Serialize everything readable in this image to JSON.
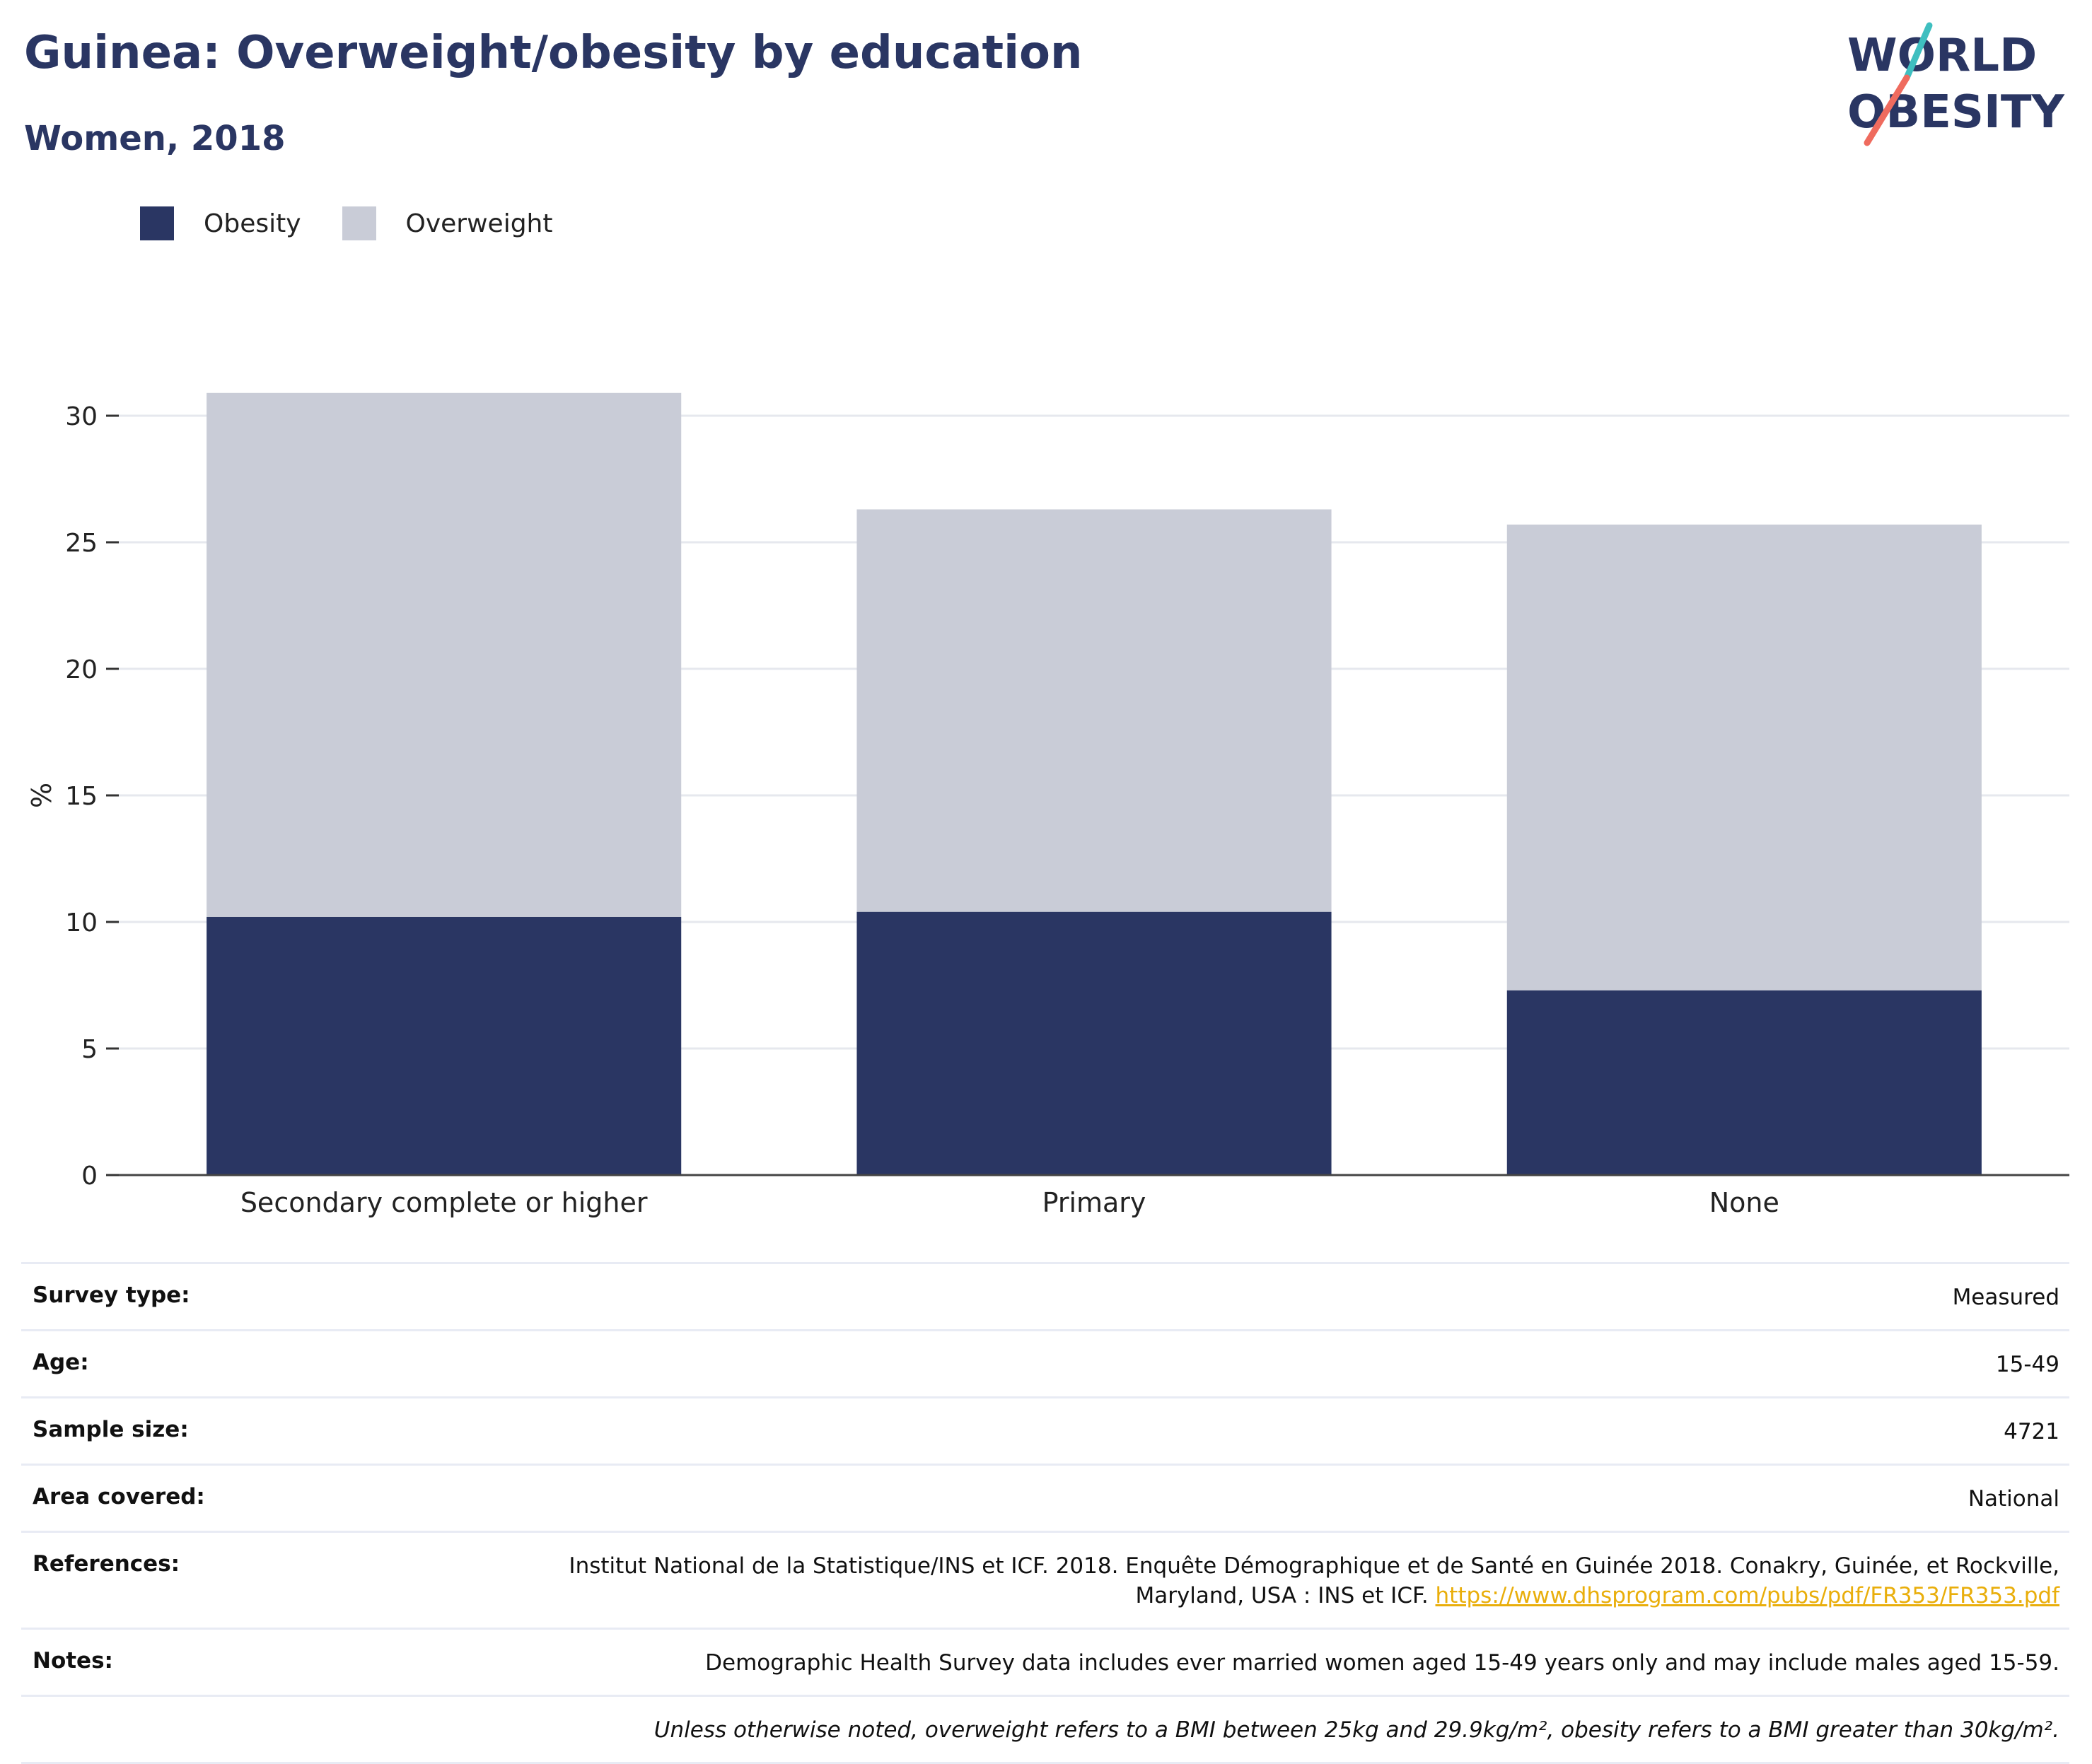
{
  "header": {
    "title": "Guinea: Overweight/obesity by education",
    "subtitle": "Women, 2018"
  },
  "logo": {
    "line1": "WORLD",
    "line2": "OBESITY",
    "colors": {
      "text": "#2a3663",
      "slash_top": "#3fbfc0",
      "slash_bottom": "#ef6b5e"
    }
  },
  "legend": [
    {
      "label": "Obesity",
      "color": "#2a3663"
    },
    {
      "label": "Overweight",
      "color": "#c9ccd7"
    }
  ],
  "chart_data": {
    "type": "bar",
    "stacked": true,
    "categories": [
      "Secondary complete or higher",
      "Primary",
      "None"
    ],
    "series": [
      {
        "name": "Obesity",
        "color": "#2a3663",
        "values": [
          10.2,
          10.4,
          7.3
        ]
      },
      {
        "name": "Overweight",
        "color": "#c9ccd7",
        "values": [
          20.7,
          15.9,
          18.4
        ]
      }
    ],
    "ylabel": "%",
    "ylim": [
      0,
      30
    ],
    "yticks": [
      0,
      5,
      10,
      15,
      20,
      25,
      30
    ],
    "grid": true,
    "legend_position": "top-left"
  },
  "meta": {
    "survey_type": {
      "label": "Survey type:",
      "value": "Measured"
    },
    "age": {
      "label": "Age:",
      "value": "15-49"
    },
    "sample_size": {
      "label": "Sample size:",
      "value": "4721"
    },
    "area_covered": {
      "label": "Area covered:",
      "value": "National"
    },
    "references": {
      "label": "References:",
      "line1": "Institut National de la Statistique/INS et ICF. 2018. Enquête Démographique et de Santé en Guinée 2018. Conakry, Guinée, et Rockville,",
      "line2": "Maryland, USA : INS et ICF.",
      "link": "https://www.dhsprogram.com/pubs/pdf/FR353/FR353.pdf"
    },
    "notes": {
      "label": "Notes:",
      "value": "Demographic Health Survey data includes ever married women aged 15-49 years only and may include males aged 15-59.",
      "footnote": "Unless otherwise noted, overweight refers to a BMI between 25kg and 29.9kg/m², obesity refers to a BMI greater than 30kg/m²."
    }
  }
}
